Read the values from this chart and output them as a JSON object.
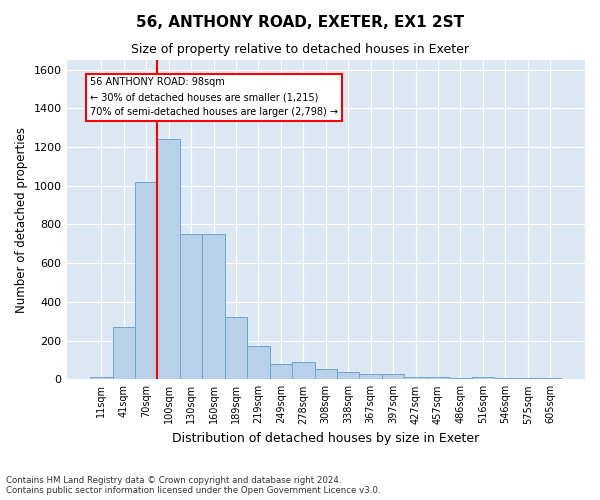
{
  "title": "56, ANTHONY ROAD, EXETER, EX1 2ST",
  "subtitle": "Size of property relative to detached houses in Exeter",
  "xlabel": "Distribution of detached houses by size in Exeter",
  "ylabel": "Number of detached properties",
  "bins": [
    "11sqm",
    "41sqm",
    "70sqm",
    "100sqm",
    "130sqm",
    "160sqm",
    "189sqm",
    "219sqm",
    "249sqm",
    "278sqm",
    "308sqm",
    "338sqm",
    "367sqm",
    "397sqm",
    "427sqm",
    "457sqm",
    "486sqm",
    "516sqm",
    "546sqm",
    "575sqm",
    "605sqm"
  ],
  "values": [
    10,
    270,
    1020,
    1240,
    750,
    750,
    320,
    170,
    80,
    90,
    55,
    40,
    30,
    25,
    10,
    10,
    5,
    10,
    5,
    5,
    5
  ],
  "bar_color": "#b8d0e8",
  "bar_edge_color": "#6ea6cc",
  "vline_color": "red",
  "annotation_text": "56 ANTHONY ROAD: 98sqm\n← 30% of detached houses are smaller (1,215)\n70% of semi-detached houses are larger (2,798) →",
  "annotation_box_color": "white",
  "annotation_box_edge": "red",
  "ylim": [
    0,
    1650
  ],
  "yticks": [
    0,
    200,
    400,
    600,
    800,
    1000,
    1200,
    1400,
    1600
  ],
  "background_color": "#dce8f4",
  "footer_line1": "Contains HM Land Registry data © Crown copyright and database right 2024.",
  "footer_line2": "Contains public sector information licensed under the Open Government Licence v3.0."
}
